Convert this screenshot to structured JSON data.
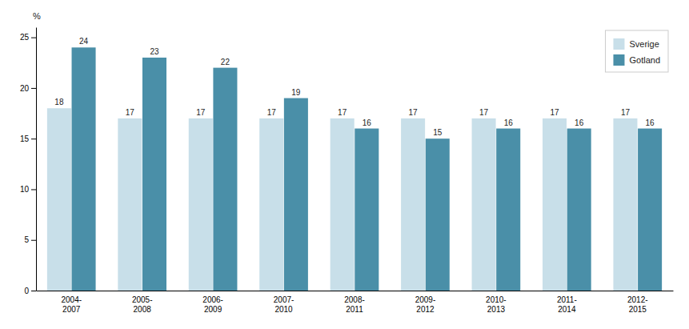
{
  "chart_data": {
    "type": "bar",
    "categories": [
      "2004-\n2007",
      "2005-\n2008",
      "2006-\n2009",
      "2007-\n2010",
      "2008-\n2011",
      "2009-\n2012",
      "2010-\n2013",
      "2011-\n2014",
      "2012-\n2015"
    ],
    "series": [
      {
        "name": "Sverige",
        "color": "#c8dfe9",
        "values": [
          18,
          17,
          17,
          17,
          17,
          17,
          17,
          17,
          17
        ]
      },
      {
        "name": "Gotland",
        "color": "#4a8fa8",
        "values": [
          24,
          23,
          22,
          19,
          16,
          15,
          16,
          16,
          16
        ]
      }
    ],
    "ylabel": "%",
    "ylim": [
      0,
      26
    ],
    "yticks": [
      0,
      5,
      10,
      15,
      20,
      25
    ],
    "grid": false,
    "legend": "upper right",
    "data_labels": true
  }
}
